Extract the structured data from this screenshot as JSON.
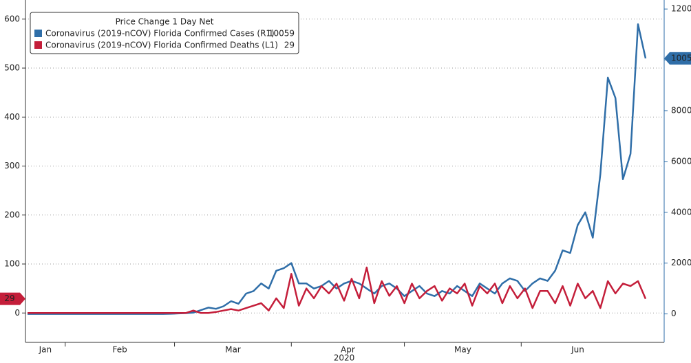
{
  "chart_data": {
    "type": "line",
    "legend_title": "Price Change 1 Day Net",
    "legend": "upper left",
    "grid": true,
    "categories": [
      null,
      null,
      null,
      null,
      null,
      null,
      null,
      null,
      null,
      null,
      null,
      null,
      null,
      null,
      null,
      null,
      null,
      null,
      null,
      null,
      null,
      null,
      null,
      null,
      null,
      null,
      null,
      null,
      null,
      null,
      null,
      null,
      null,
      null,
      null,
      null,
      null,
      null,
      null,
      null,
      null,
      null,
      null,
      null,
      null,
      null,
      null,
      null,
      null,
      null,
      null,
      null,
      null,
      null,
      null,
      null,
      null,
      null,
      null,
      null,
      null,
      null,
      null,
      null,
      null,
      null,
      null,
      null,
      null,
      null,
      null,
      null,
      null,
      null,
      null,
      null,
      null,
      null,
      null,
      null,
      null,
      null,
      null
    ],
    "xtick_labels": [
      "Jan",
      "Feb",
      "Mar",
      "Apr",
      "May",
      "Jun"
    ],
    "xlabel": "2020",
    "ylim": [
      -60,
      632
    ],
    "yticks": [
      0,
      100,
      200,
      300,
      400,
      500,
      600
    ],
    "y2lim": [
      -1120,
      12220
    ],
    "y2ticks": [
      0,
      2000,
      4000,
      6000,
      8000,
      10000,
      12000
    ],
    "series": [
      {
        "name": "Coronavirus (2019-nCOV) Florida Confirmed Cases (R1)",
        "color": "#2f6ea8",
        "axis": "y2",
        "values": [
          0,
          0,
          0,
          0,
          0,
          0,
          0,
          0,
          0,
          0,
          0,
          0,
          0,
          0,
          0,
          0,
          0,
          0,
          0,
          5,
          20,
          30,
          50,
          150,
          250,
          200,
          300,
          500,
          400,
          800,
          900,
          1200,
          1000,
          1700,
          1800,
          2000,
          1200,
          1200,
          1000,
          1100,
          1300,
          1000,
          1200,
          1300,
          1200,
          1000,
          800,
          1100,
          1200,
          1000,
          700,
          900,
          1100,
          800,
          700,
          900,
          800,
          1100,
          900,
          700,
          1200,
          1000,
          800,
          1200,
          1400,
          1300,
          900,
          1200,
          1400,
          1300,
          1700,
          2500,
          2400,
          3500,
          4000,
          3000,
          5500,
          9300,
          8500,
          5300,
          6300,
          11400,
          10059
        ]
      },
      {
        "name": "Coronavirus (2019-nCOV) Florida Confirmed Deaths (L1)",
        "color": "#c41e3a",
        "values": [
          0,
          0,
          0,
          0,
          0,
          0,
          0,
          0,
          0,
          0,
          0,
          0,
          0,
          0,
          0,
          0,
          0,
          0,
          0,
          0,
          0,
          0,
          5,
          0,
          0,
          2,
          5,
          8,
          5,
          10,
          15,
          20,
          5,
          30,
          10,
          80,
          15,
          50,
          30,
          55,
          40,
          60,
          25,
          70,
          30,
          93,
          20,
          65,
          35,
          55,
          20,
          60,
          30,
          45,
          55,
          25,
          50,
          40,
          60,
          15,
          55,
          40,
          60,
          20,
          55,
          30,
          50,
          10,
          45,
          45,
          20,
          55,
          15,
          60,
          30,
          45,
          10,
          65,
          40,
          60,
          55,
          65,
          29
        ]
      }
    ]
  }
}
